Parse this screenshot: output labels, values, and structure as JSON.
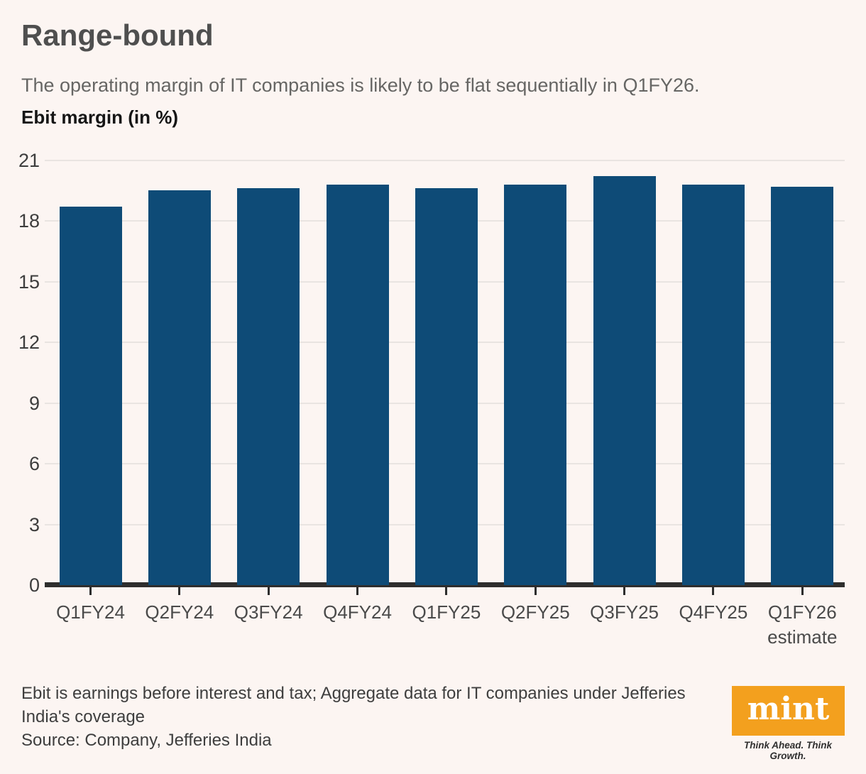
{
  "colors": {
    "background": "#FCF5F2",
    "bar": "#0E4B77",
    "axis": "#2E2E2E",
    "gridline": "#E9E4E1",
    "mint_orange": "#F3A01E"
  },
  "chart_data": {
    "type": "bar",
    "title": "Range-bound",
    "subtitle": "The operating margin of IT companies is likely to be flat sequentially in Q1FY26.",
    "unit_label": "Ebit margin (in %)",
    "categories": [
      "Q1FY24",
      "Q2FY24",
      "Q3FY24",
      "Q4FY24",
      "Q1FY25",
      "Q2FY25",
      "Q3FY25",
      "Q4FY25",
      "Q1FY26 estimate"
    ],
    "x_labels": [
      "Q1FY24",
      "Q2FY24",
      "Q3FY24",
      "Q4FY24",
      "Q1FY25",
      "Q2FY25",
      "Q3FY25",
      "Q4FY25",
      "Q1FY26\nestimate"
    ],
    "values": [
      18.7,
      19.5,
      19.6,
      19.8,
      19.6,
      19.8,
      20.2,
      19.8,
      19.7
    ],
    "xlabel": "",
    "ylabel": "Ebit margin (in %)",
    "y_ticks": [
      0,
      3,
      6,
      9,
      12,
      15,
      18,
      21
    ],
    "ylim": [
      0,
      21
    ],
    "grid": true,
    "legend": "none"
  },
  "footer": {
    "note": "Ebit is earnings before interest and tax; Aggregate data for IT companies under Jefferies India's coverage",
    "source": "Source: Company, Jefferies India",
    "logo_text": "mint",
    "logo_tagline": "Think Ahead. Think Growth."
  }
}
